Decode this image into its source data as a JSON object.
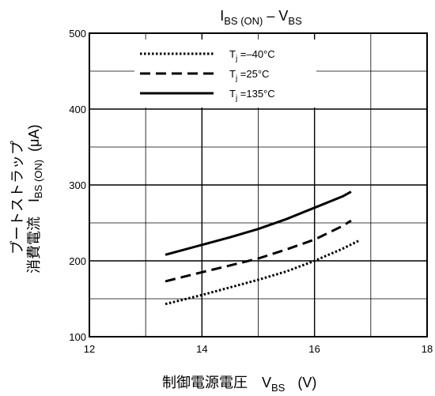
{
  "chart_data": {
    "type": "line",
    "title": {
      "main": "I",
      "sub1": "BS (ON)",
      "mid": " – V",
      "sub2": "BS"
    },
    "xlabel": {
      "main": "制御電源電圧　V",
      "sub": "BS",
      "unit": "(V)"
    },
    "ylabel": {
      "line1": "ブートストラップ",
      "line2_prefix": "消費電流　I",
      "line2_sub": "BS (ON)",
      "line2_unit": "(μA)"
    },
    "xlim": [
      12,
      18
    ],
    "ylim": [
      100,
      500
    ],
    "xticks": [
      "12",
      "14",
      "16",
      "18"
    ],
    "yticks": [
      "100",
      "200",
      "300",
      "400",
      "500"
    ],
    "grid": true,
    "legend_position": "top-left",
    "series": [
      {
        "name": "T",
        "name_sub": "j",
        "name_rest": " =–40°C",
        "style": "dotted",
        "x": [
          13.35,
          14,
          14.5,
          15,
          15.5,
          16,
          16.5,
          16.8
        ],
        "y": [
          143,
          155,
          165,
          175,
          186,
          200,
          216,
          227
        ]
      },
      {
        "name": "T",
        "name_sub": "j",
        "name_rest": " =25°C",
        "style": "dashed",
        "x": [
          13.35,
          14,
          14.5,
          15,
          15.5,
          16,
          16.5,
          16.65
        ],
        "y": [
          173,
          185,
          194,
          203,
          215,
          228,
          246,
          253
        ]
      },
      {
        "name": "T",
        "name_sub": "j",
        "name_rest": " =135°C",
        "style": "solid",
        "x": [
          13.35,
          14,
          14.5,
          15,
          15.5,
          16,
          16.5,
          16.65
        ],
        "y": [
          208,
          221,
          231,
          242,
          255,
          270,
          285,
          291
        ]
      }
    ]
  }
}
